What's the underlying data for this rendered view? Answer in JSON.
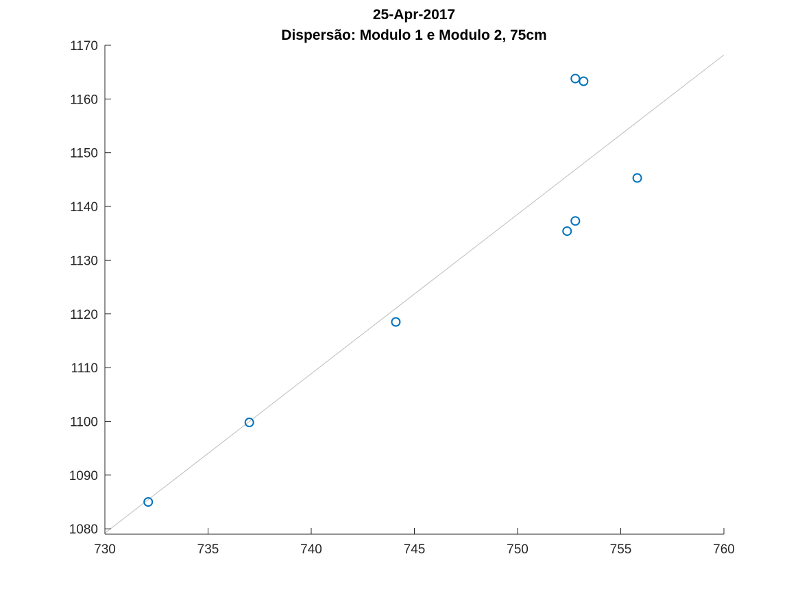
{
  "chart_data": {
    "type": "scatter",
    "title": "25-Apr-2017",
    "subtitle": "Dispersão: Modulo 1 e Modulo 2, 75cm",
    "xlabel": "",
    "ylabel": "",
    "xlim": [
      730,
      760
    ],
    "ylim": [
      1079,
      1170
    ],
    "xticks": [
      "730",
      "735",
      "740",
      "745",
      "750",
      "755",
      "760"
    ],
    "yticks": [
      "1080",
      "1090",
      "1100",
      "1110",
      "1120",
      "1130",
      "1140",
      "1150",
      "1160",
      "1170"
    ],
    "grid": false,
    "marker_color": "#0072bd",
    "line_color": "#bdbdbd",
    "series": [
      {
        "x": [
          732.1,
          737.0,
          744.1,
          752.4,
          752.8,
          752.8,
          753.2,
          755.8
        ],
        "y": [
          1085.0,
          1099.8,
          1118.5,
          1135.4,
          1137.3,
          1163.8,
          1163.3,
          1145.3
        ]
      }
    ],
    "fit_line": {
      "x": [
        730,
        760
      ],
      "y": [
        1079.2,
        1168.2
      ]
    }
  }
}
